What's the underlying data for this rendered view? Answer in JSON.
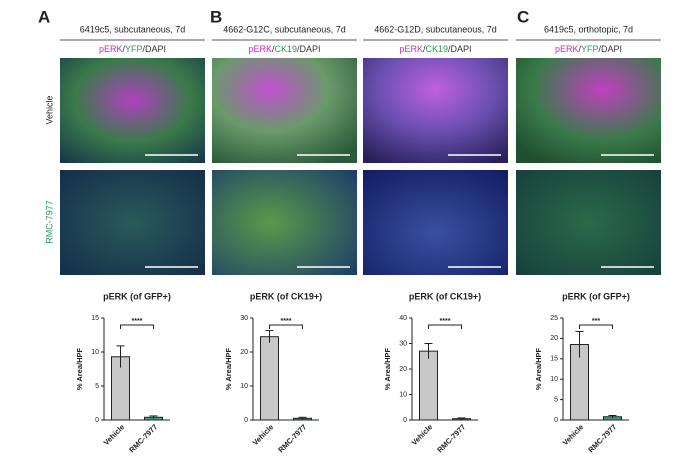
{
  "panel_labels": [
    "A",
    "B",
    "C"
  ],
  "row_labels": [
    "Vehicle",
    "RMC-7977"
  ],
  "columns": [
    {
      "header": "6419c5, subcutaneous, 7d",
      "stain": [
        "pERK",
        "/",
        "YFP",
        "/DAPI"
      ]
    },
    {
      "header": "4662-G12C, subcutaneous, 7d",
      "stain": [
        "pERK",
        "/",
        "CK19",
        "/DAPI"
      ]
    },
    {
      "header": "4662-G12D, subcutaneous, 7d",
      "stain": [
        "pERK",
        "/",
        "CK19",
        "/DAPI"
      ]
    },
    {
      "header": "6419c5, orthotopic, 7d",
      "stain": [
        "pERK",
        "/",
        "YFP",
        "/DAPI"
      ]
    }
  ],
  "chart_data": [
    {
      "type": "bar",
      "title": "pERK (of GFP+)",
      "ylabel": "% Area/HPF",
      "categories": [
        "Vehicle",
        "RMC-7977"
      ],
      "values": [
        9.3,
        0.4
      ],
      "errors": [
        1.6,
        0.2
      ],
      "colors": [
        "#c8c8c8",
        "#3aa37e"
      ],
      "ylim": [
        0,
        15
      ],
      "yticks": [
        0,
        5,
        10,
        15
      ],
      "annotation": "****"
    },
    {
      "type": "bar",
      "title": "pERK (of CK19+)",
      "ylabel": "% Area/HPF",
      "categories": [
        "Vehicle",
        "RMC-7977"
      ],
      "values": [
        24.5,
        0.5
      ],
      "errors": [
        1.8,
        0.3
      ],
      "colors": [
        "#c8c8c8",
        "#3aa37e"
      ],
      "ylim": [
        0,
        30
      ],
      "yticks": [
        0,
        10,
        20,
        30
      ],
      "annotation": "****"
    },
    {
      "type": "bar",
      "title": "pERK (of CK19+)",
      "ylabel": "% Area/HPF",
      "categories": [
        "Vehicle",
        "RMC-7977"
      ],
      "values": [
        27,
        0.5
      ],
      "errors": [
        3,
        0.3
      ],
      "colors": [
        "#c8c8c8",
        "#3aa37e"
      ],
      "ylim": [
        0,
        40
      ],
      "yticks": [
        0,
        10,
        20,
        30,
        40
      ],
      "annotation": "****"
    },
    {
      "type": "bar",
      "title": "pERK (of GFP+)",
      "ylabel": "% Area/HPF",
      "categories": [
        "Vehicle",
        "RMC-7977"
      ],
      "values": [
        18.5,
        0.8
      ],
      "errors": [
        3.2,
        0.3
      ],
      "colors": [
        "#c8c8c8",
        "#3aa37e"
      ],
      "ylim": [
        0,
        25
      ],
      "yticks": [
        0,
        5,
        10,
        15,
        20,
        25
      ],
      "annotation": "***"
    }
  ]
}
